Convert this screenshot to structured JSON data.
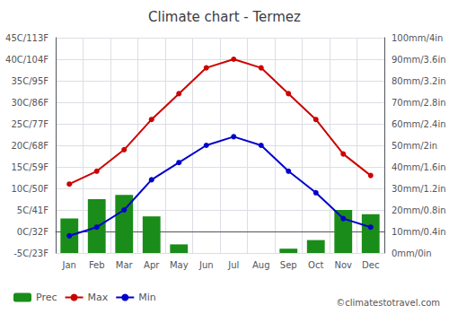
{
  "chart_data": {
    "type": "line",
    "title": "Climate chart - Termez",
    "categories": [
      "Jan",
      "Feb",
      "Mar",
      "Apr",
      "May",
      "Jun",
      "Jul",
      "Aug",
      "Sep",
      "Oct",
      "Nov",
      "Dec"
    ],
    "series": [
      {
        "name": "Prec",
        "type": "bar",
        "axis": "y2",
        "color": "#1a8c1a",
        "values": [
          16,
          25,
          27,
          17,
          4,
          0,
          0,
          0,
          2,
          6,
          20,
          18
        ]
      },
      {
        "name": "Max",
        "type": "line",
        "marker": "circle",
        "color": "#cc0000",
        "values": [
          11,
          14,
          19,
          26,
          32,
          38,
          40,
          38,
          32,
          26,
          18,
          13
        ]
      },
      {
        "name": "Min",
        "type": "line",
        "marker": "circle",
        "color": "#0000cc",
        "values": [
          -1,
          1,
          5,
          12,
          16,
          20,
          22,
          20,
          14,
          9,
          3,
          1
        ]
      }
    ],
    "ylim": [
      -5,
      45
    ],
    "yticks": [
      {
        "value": -5,
        "label": "-5C/23F"
      },
      {
        "value": 0,
        "label": "0C/32F"
      },
      {
        "value": 5,
        "label": "5C/41F"
      },
      {
        "value": 10,
        "label": "10C/50F"
      },
      {
        "value": 15,
        "label": "15C/59F"
      },
      {
        "value": 20,
        "label": "20C/68F"
      },
      {
        "value": 25,
        "label": "25C/77F"
      },
      {
        "value": 30,
        "label": "30C/86F"
      },
      {
        "value": 35,
        "label": "35C/95F"
      },
      {
        "value": 40,
        "label": "40C/104F"
      },
      {
        "value": 45,
        "label": "45C/113F"
      }
    ],
    "y2lim": [
      0,
      100
    ],
    "y2ticks": [
      {
        "value": 0,
        "label": "0mm/0in"
      },
      {
        "value": 10,
        "label": "10mm/0.4in"
      },
      {
        "value": 20,
        "label": "20mm/0.8in"
      },
      {
        "value": 30,
        "label": "30mm/1.2in"
      },
      {
        "value": 40,
        "label": "40mm/1.6in"
      },
      {
        "value": 50,
        "label": "50mm/2in"
      },
      {
        "value": 60,
        "label": "60mm/2.4in"
      },
      {
        "value": 70,
        "label": "70mm/2.8in"
      },
      {
        "value": 80,
        "label": "80mm/3.2in"
      },
      {
        "value": 90,
        "label": "90mm/3.6in"
      },
      {
        "value": 100,
        "label": "100mm/4in"
      }
    ],
    "grid": true,
    "legend": "bottom",
    "annotations": [
      "©climatestotravel.com"
    ]
  }
}
